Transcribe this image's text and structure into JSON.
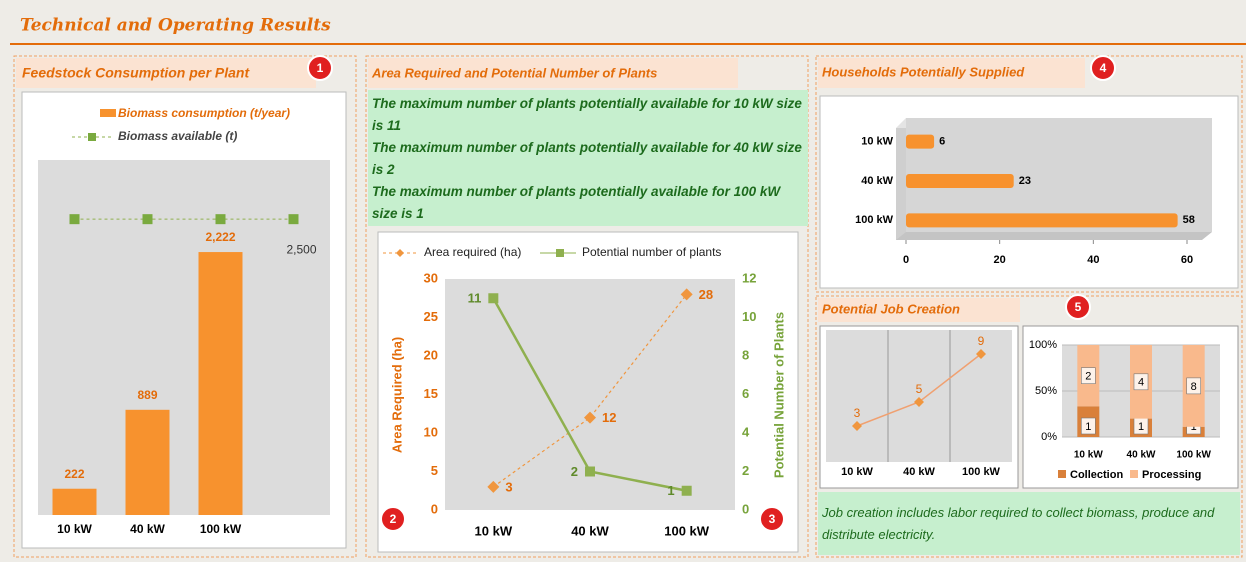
{
  "header": {
    "title": "Technical and Operating Results"
  },
  "sections": [
    {
      "title": "Feedstock Consumption per Plant",
      "badges": [
        "1"
      ]
    },
    {
      "title": "Area Required and Potential Number of Plants",
      "badges": [
        "2",
        "3"
      ]
    },
    {
      "title": "Households Potentially Supplied",
      "badges": [
        "4"
      ]
    },
    {
      "title": "Potential Job Creation",
      "badges": [
        "5"
      ]
    }
  ],
  "notes": {
    "plants": [
      "The maximum number of plants potentially available for 10 kW size is 11",
      "The maximum number of plants potentially available for 40 kW size is 2",
      "The maximum number of plants potentially available for 100 kW size is 1"
    ],
    "jobs": "Job creation includes labor required to collect biomass, produce and distribute electricity."
  },
  "chart_data": [
    {
      "type": "combo_bar_line",
      "categories": [
        "10 kW",
        "40 kW",
        "100 kW",
        null
      ],
      "ylim": [
        0,
        3000
      ],
      "series": [
        {
          "name": "Biomass consumption (t/year)",
          "type": "bar",
          "color": "#f7922e",
          "values": [
            222,
            889,
            2222,
            null
          ],
          "value_labels": [
            "222",
            "889",
            "2,222",
            null
          ]
        },
        {
          "name": "Biomass available (t)",
          "type": "line",
          "color": "#8fb04f",
          "values": [
            2500,
            2500,
            2500,
            2500
          ],
          "value_labels": [
            null,
            null,
            null,
            "2,500"
          ]
        }
      ]
    },
    {
      "type": "dual_line",
      "categories": [
        "10 kW",
        "40 kW",
        "100 kW"
      ],
      "ylim": [
        0,
        30
      ],
      "yticks": [
        0,
        5,
        10,
        15,
        20,
        25,
        30
      ],
      "y2lim": [
        0,
        12
      ],
      "y2ticks": [
        0,
        2,
        4,
        6,
        8,
        10,
        12
      ],
      "ylabel": "Area Required (ha)",
      "y2label": "Potential Number of Plants",
      "series": [
        {
          "name": "Area required (ha)",
          "color": "#f0963e",
          "values": [
            3,
            12,
            28
          ]
        },
        {
          "name": "Potential number of plants",
          "axis": "y2",
          "color": "#8fb04f",
          "values": [
            11,
            2,
            1
          ]
        }
      ]
    },
    {
      "type": "hbar",
      "categories": [
        "10 kW",
        "40 kW",
        "100 kW"
      ],
      "values": [
        6,
        23,
        58
      ],
      "color": "#f7922e",
      "xlim": [
        0,
        60
      ],
      "xticks": [
        0,
        20,
        40,
        60
      ]
    },
    {
      "type": "line",
      "categories": [
        "10 kW",
        "40 kW",
        "100 kW"
      ],
      "values": [
        3,
        5,
        9
      ],
      "color": "#f0a070",
      "ylim": [
        0,
        11
      ],
      "grid": "vertical"
    },
    {
      "type": "stacked_percent_bar",
      "categories": [
        "10 kW",
        "40 kW",
        "100 kW"
      ],
      "ylim": [
        0,
        100
      ],
      "yticks": [
        {
          "value": 0,
          "label": "0%"
        },
        {
          "value": 50,
          "label": "50%"
        },
        {
          "value": 100,
          "label": "100%"
        }
      ],
      "series": [
        {
          "name": "Collection",
          "color": "#d9803a",
          "values": [
            1,
            1,
            1
          ]
        },
        {
          "name": "Processing",
          "color": "#f9b98c",
          "values": [
            2,
            4,
            8
          ]
        }
      ]
    }
  ]
}
